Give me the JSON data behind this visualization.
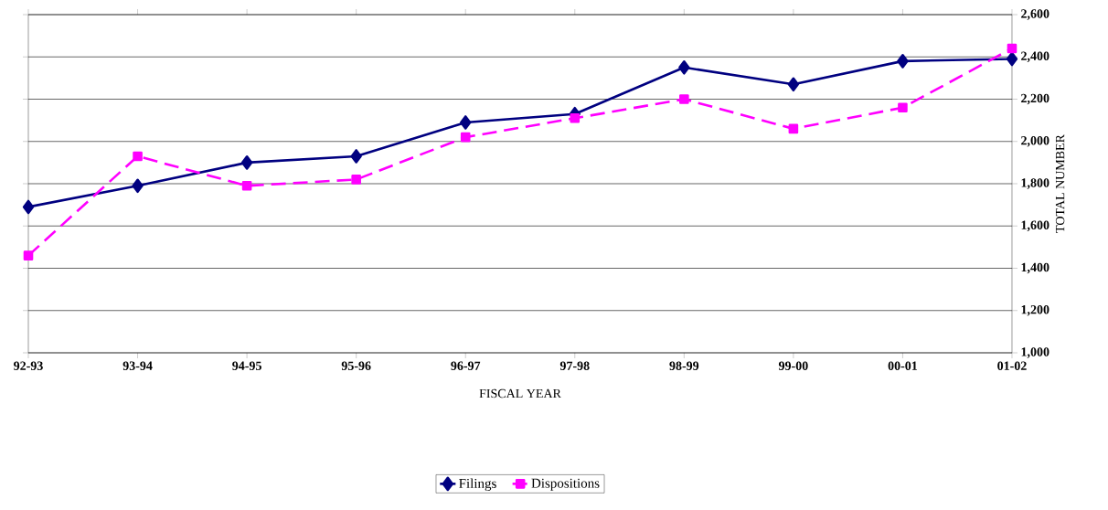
{
  "chart_data": {
    "type": "line",
    "xlabel": "FISCAL YEAR",
    "ylabel": "TOTAL NUMBER",
    "categories": [
      "92-93",
      "93-94",
      "94-95",
      "95-96",
      "96-97",
      "97-98",
      "98-99",
      "99-00",
      "00-01",
      "01-02"
    ],
    "series": [
      {
        "name": "Filings",
        "color": "#000080",
        "marker": "diamond",
        "line_style": "solid",
        "values": [
          1690,
          1790,
          1900,
          1930,
          2090,
          2130,
          2350,
          2270,
          2380,
          2390
        ]
      },
      {
        "name": "Dispositions",
        "color": "#ff00ff",
        "marker": "square",
        "line_style": "dashed",
        "values": [
          1460,
          1930,
          1790,
          1820,
          2020,
          2110,
          2200,
          2060,
          2160,
          2440
        ]
      }
    ],
    "ylim": [
      1000,
      2600
    ],
    "yticks": [
      {
        "value": 1000,
        "label": "1,000"
      },
      {
        "value": 1200,
        "label": "1,200"
      },
      {
        "value": 1400,
        "label": "1,400"
      },
      {
        "value": 1600,
        "label": "1,600"
      },
      {
        "value": 1800,
        "label": "1,800"
      },
      {
        "value": 2000,
        "label": "2,000"
      },
      {
        "value": 2200,
        "label": "2,200"
      },
      {
        "value": 2400,
        "label": "2,400"
      },
      {
        "value": 2600,
        "label": "2,600"
      }
    ],
    "grid": "y",
    "legend": "bottom"
  }
}
